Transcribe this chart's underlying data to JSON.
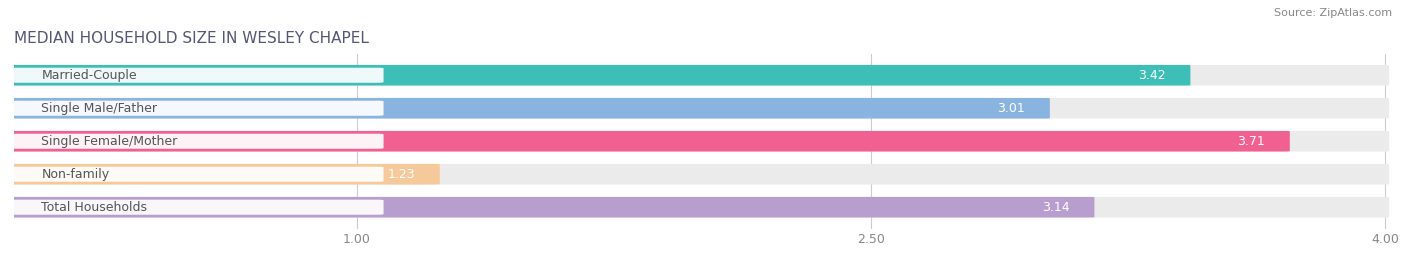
{
  "title": "MEDIAN HOUSEHOLD SIZE IN WESLEY CHAPEL",
  "source": "Source: ZipAtlas.com",
  "categories": [
    "Married-Couple",
    "Single Male/Father",
    "Single Female/Mother",
    "Non-family",
    "Total Households"
  ],
  "values": [
    3.42,
    3.01,
    3.71,
    1.23,
    3.14
  ],
  "bar_colors": [
    "#3dbfb8",
    "#8ab4e0",
    "#f06090",
    "#f5c99a",
    "#b89ece"
  ],
  "bar_bg_color": "#ebebeb",
  "xlim_max": 4.0,
  "xticks": [
    1.0,
    2.5,
    4.0
  ],
  "title_fontsize": 11,
  "source_fontsize": 8,
  "label_fontsize": 9,
  "value_fontsize": 9,
  "label_text_color": "#555555",
  "value_text_color": "#555555",
  "background_color": "#ffffff"
}
